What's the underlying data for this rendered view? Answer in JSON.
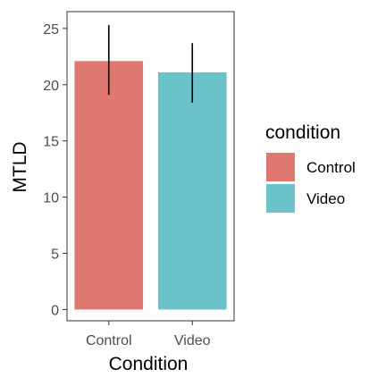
{
  "chart_data": {
    "type": "bar",
    "categories": [
      "Control",
      "Video"
    ],
    "values": [
      22.1,
      21.1
    ],
    "error_bars": [
      {
        "low": 19.1,
        "high": 25.3
      },
      {
        "low": 18.4,
        "high": 23.7
      }
    ],
    "colors": [
      "#E07872",
      "#6BC2C8"
    ],
    "xlabel": "Condition",
    "ylabel": "MTLD",
    "ylim": [
      -1.0,
      26.5
    ],
    "yticks": [
      0,
      5,
      10,
      15,
      20,
      25
    ],
    "ytick_labels": [
      "0",
      "5",
      "10",
      "15",
      "20",
      "25"
    ],
    "xtick_labels": [
      "Control",
      "Video"
    ],
    "grid": false,
    "legend": {
      "title": "condition",
      "placement": "right",
      "entries": [
        "Control",
        "Video"
      ]
    }
  }
}
